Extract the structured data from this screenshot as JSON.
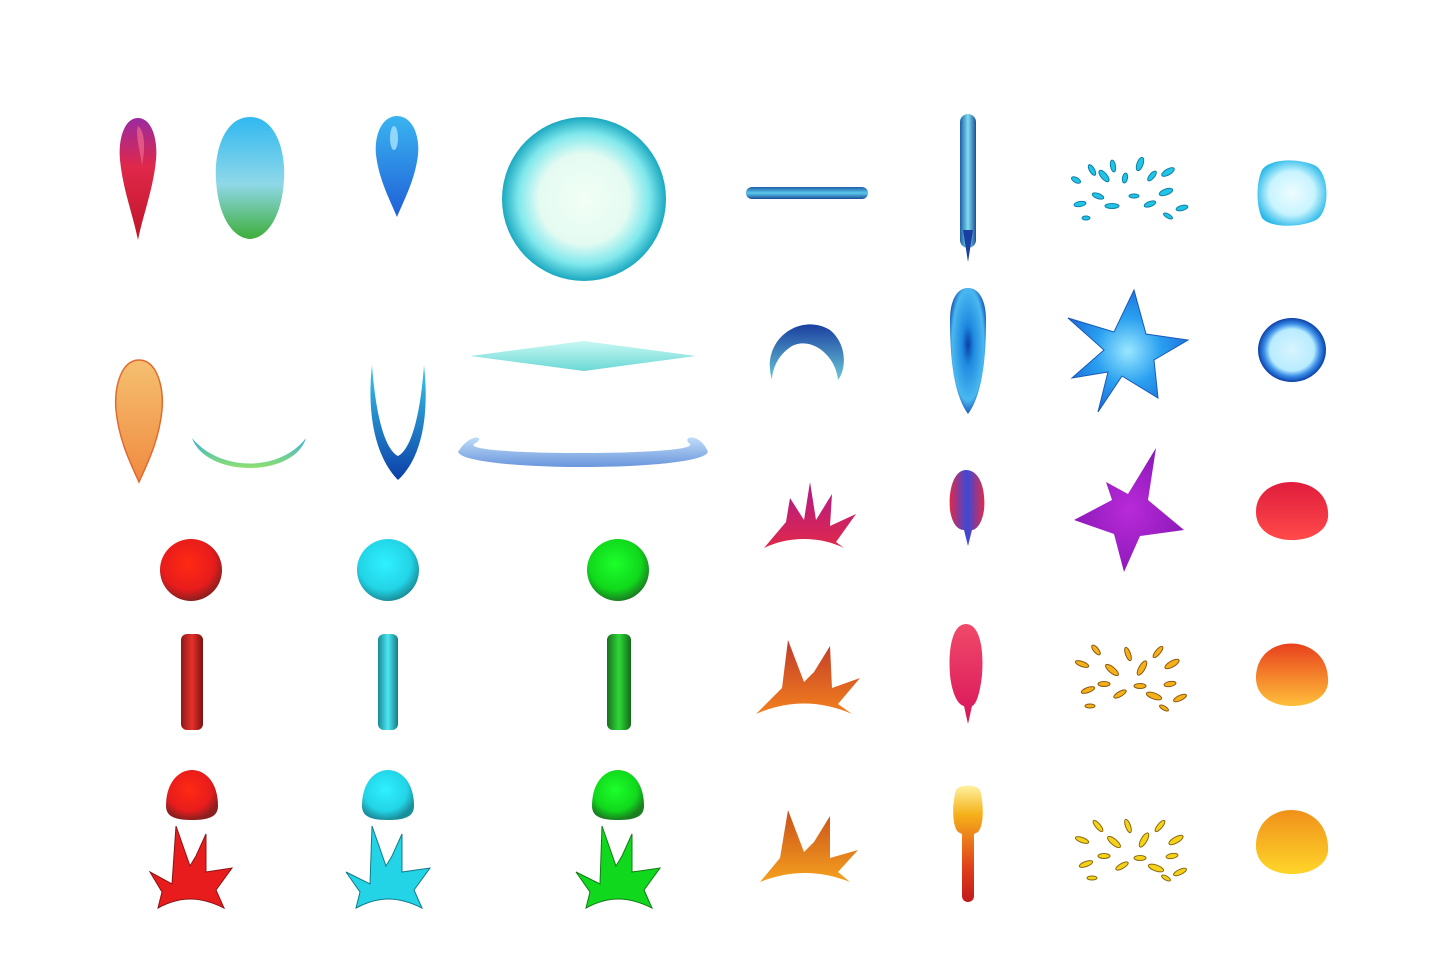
{
  "sprite_sheet": {
    "background": "#ffffff",
    "palette": {
      "red": "#e81c1c",
      "cyan": "#22d4e6",
      "green": "#10d81c",
      "blue": "#1f6fe0",
      "navy": "#0b3fa8",
      "magenta": "#a31ccc",
      "crimson": "#e0284a",
      "orange": "#f2801e",
      "gold": "#f5c21a",
      "aqua": "#7fe8ec",
      "peach": "#f5b770"
    },
    "sprites": [
      {
        "id": "teardrop-magenta",
        "icon": "teardrop-icon"
      },
      {
        "id": "egg-cyan-green",
        "icon": "egg-icon"
      },
      {
        "id": "teardrop-blue",
        "icon": "teardrop-icon"
      },
      {
        "id": "energy-orb-large",
        "icon": "orb-icon"
      },
      {
        "id": "laser-bar-horizontal",
        "icon": "bar-icon"
      },
      {
        "id": "laser-bar-vertical",
        "icon": "bar-icon"
      },
      {
        "id": "spark-burst-cyan",
        "icon": "spark-burst-icon"
      },
      {
        "id": "bubble-square-cyan",
        "icon": "bubble-icon"
      },
      {
        "id": "teardrop-peach",
        "icon": "teardrop-icon"
      },
      {
        "id": "crescent-wide-aqua",
        "icon": "crescent-icon"
      },
      {
        "id": "crescent-deep-blue",
        "icon": "crescent-icon"
      },
      {
        "id": "diamond-flat-aqua",
        "icon": "diamond-icon"
      },
      {
        "id": "ring-flat-blue",
        "icon": "ring-icon"
      },
      {
        "id": "crescent-small-blue",
        "icon": "crescent-icon"
      },
      {
        "id": "capsule-blue",
        "icon": "capsule-icon"
      },
      {
        "id": "star-blue",
        "icon": "star-icon"
      },
      {
        "id": "bubble-ring-blue",
        "icon": "bubble-icon"
      },
      {
        "id": "ball-red",
        "icon": "ball-icon"
      },
      {
        "id": "ball-cyan",
        "icon": "ball-icon"
      },
      {
        "id": "ball-green",
        "icon": "ball-icon"
      },
      {
        "id": "crown-burst-magenta",
        "icon": "crown-burst-icon"
      },
      {
        "id": "flame-rocket-magenta",
        "icon": "flame-icon"
      },
      {
        "id": "star-magenta",
        "icon": "star-icon"
      },
      {
        "id": "dome-crimson",
        "icon": "dome-icon"
      },
      {
        "id": "pillar-red",
        "icon": "pillar-icon"
      },
      {
        "id": "pillar-cyan",
        "icon": "pillar-icon"
      },
      {
        "id": "pillar-green",
        "icon": "pillar-icon"
      },
      {
        "id": "crown-burst-orange",
        "icon": "crown-burst-icon"
      },
      {
        "id": "flame-pink",
        "icon": "flame-icon"
      },
      {
        "id": "spark-burst-gold",
        "icon": "spark-burst-icon"
      },
      {
        "id": "dome-orange",
        "icon": "dome-icon"
      },
      {
        "id": "dome-red",
        "icon": "dome-icon"
      },
      {
        "id": "dome-cyan",
        "icon": "dome-icon"
      },
      {
        "id": "dome-green",
        "icon": "dome-icon"
      },
      {
        "id": "spike-burst-red",
        "icon": "spike-burst-icon"
      },
      {
        "id": "spike-burst-cyan",
        "icon": "spike-burst-icon"
      },
      {
        "id": "spike-burst-green",
        "icon": "spike-burst-icon"
      },
      {
        "id": "crown-burst-amber",
        "icon": "crown-burst-icon"
      },
      {
        "id": "flame-torch-orange",
        "icon": "flame-icon"
      },
      {
        "id": "spark-burst-yellow",
        "icon": "spark-burst-icon"
      },
      {
        "id": "dome-gold",
        "icon": "dome-icon"
      }
    ]
  }
}
